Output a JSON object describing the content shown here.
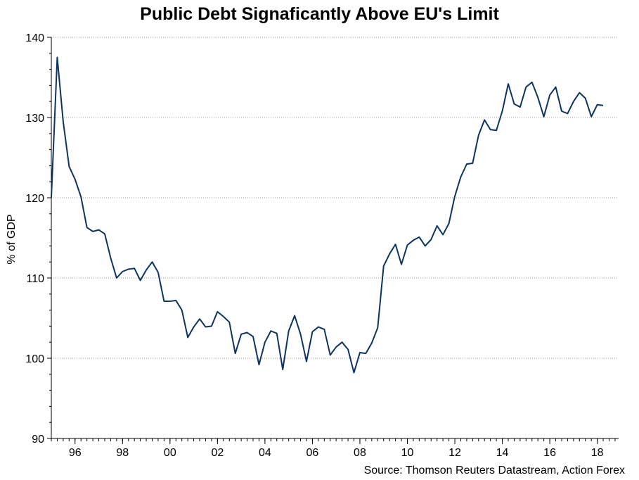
{
  "chart_data": {
    "type": "line",
    "title": "Public Debt Signaficantly Above EU's Limit",
    "ylabel": "% of GDP",
    "xlabel": "",
    "source": "Source: Thomson Reuters Datastream, Action Forex",
    "ylim": [
      90,
      140
    ],
    "yticks": [
      90,
      100,
      110,
      120,
      130,
      140
    ],
    "xlim": [
      1995.0,
      2018.9
    ],
    "xticks": [
      {
        "value": 1996.0,
        "label": "96"
      },
      {
        "value": 1998.0,
        "label": "98"
      },
      {
        "value": 2000.0,
        "label": "00"
      },
      {
        "value": 2002.0,
        "label": "02"
      },
      {
        "value": 2004.0,
        "label": "04"
      },
      {
        "value": 2006.0,
        "label": "06"
      },
      {
        "value": 2008.0,
        "label": "08"
      },
      {
        "value": 2010.0,
        "label": "10"
      },
      {
        "value": 2012.0,
        "label": "12"
      },
      {
        "value": 2014.0,
        "label": "14"
      },
      {
        "value": 2016.0,
        "label": "16"
      },
      {
        "value": 2018.0,
        "label": "18"
      }
    ],
    "grid": "horizontal-dotted",
    "line_color": "#0d3460",
    "series": [
      {
        "x": [
          1995.0,
          1995.25,
          1995.5,
          1995.75,
          1996.0,
          1996.25,
          1996.5,
          1996.75,
          1997.0,
          1997.25,
          1997.5,
          1997.75,
          1998.0,
          1998.25,
          1998.5,
          1998.75,
          1999.0,
          1999.25,
          1999.5,
          1999.75,
          2000.0,
          2000.25,
          2000.5,
          2000.75,
          2001.0,
          2001.25,
          2001.5,
          2001.75,
          2002.0,
          2002.25,
          2002.5,
          2002.75,
          2003.0,
          2003.25,
          2003.5,
          2003.75,
          2004.0,
          2004.25,
          2004.5,
          2004.75,
          2005.0,
          2005.25,
          2005.5,
          2005.75,
          2006.0,
          2006.25,
          2006.5,
          2006.75,
          2007.0,
          2007.25,
          2007.5,
          2007.75,
          2008.0,
          2008.25,
          2008.5,
          2008.75,
          2009.0,
          2009.25,
          2009.5,
          2009.75,
          2010.0,
          2010.25,
          2010.5,
          2010.75,
          2011.0,
          2011.25,
          2011.5,
          2011.75,
          2012.0,
          2012.25,
          2012.5,
          2012.75,
          2013.0,
          2013.25,
          2013.5,
          2013.75,
          2014.0,
          2014.25,
          2014.5,
          2014.75,
          2015.0,
          2015.25,
          2015.5,
          2015.75,
          2016.0,
          2016.25,
          2016.5,
          2016.75,
          2017.0,
          2017.25,
          2017.5,
          2017.75,
          2018.0,
          2018.25
        ],
        "values": [
          120.0,
          137.5,
          129.5,
          123.9,
          122.3,
          120.1,
          116.3,
          115.8,
          116.0,
          115.5,
          112.5,
          110.0,
          110.8,
          111.1,
          111.2,
          109.7,
          111.0,
          112.0,
          110.7,
          107.1,
          107.1,
          107.2,
          106.0,
          102.6,
          103.9,
          104.9,
          103.9,
          104.0,
          105.8,
          105.2,
          104.5,
          100.6,
          103.0,
          103.2,
          102.7,
          99.2,
          102.0,
          103.4,
          103.1,
          98.6,
          103.4,
          105.3,
          103.0,
          99.6,
          103.3,
          103.9,
          103.6,
          100.4,
          101.4,
          102.0,
          101.1,
          98.2,
          100.7,
          100.6,
          101.9,
          103.8,
          111.5,
          113.0,
          114.2,
          111.7,
          114.1,
          114.7,
          115.1,
          114.0,
          114.8,
          116.5,
          115.4,
          116.8,
          120.2,
          122.6,
          124.2,
          124.3,
          127.8,
          129.7,
          128.5,
          128.4,
          130.8,
          134.2,
          131.7,
          131.3,
          133.8,
          134.4,
          132.5,
          130.1,
          132.8,
          133.8,
          130.8,
          130.5,
          132.0,
          133.1,
          132.4,
          130.1,
          131.6,
          131.5
        ]
      }
    ]
  }
}
